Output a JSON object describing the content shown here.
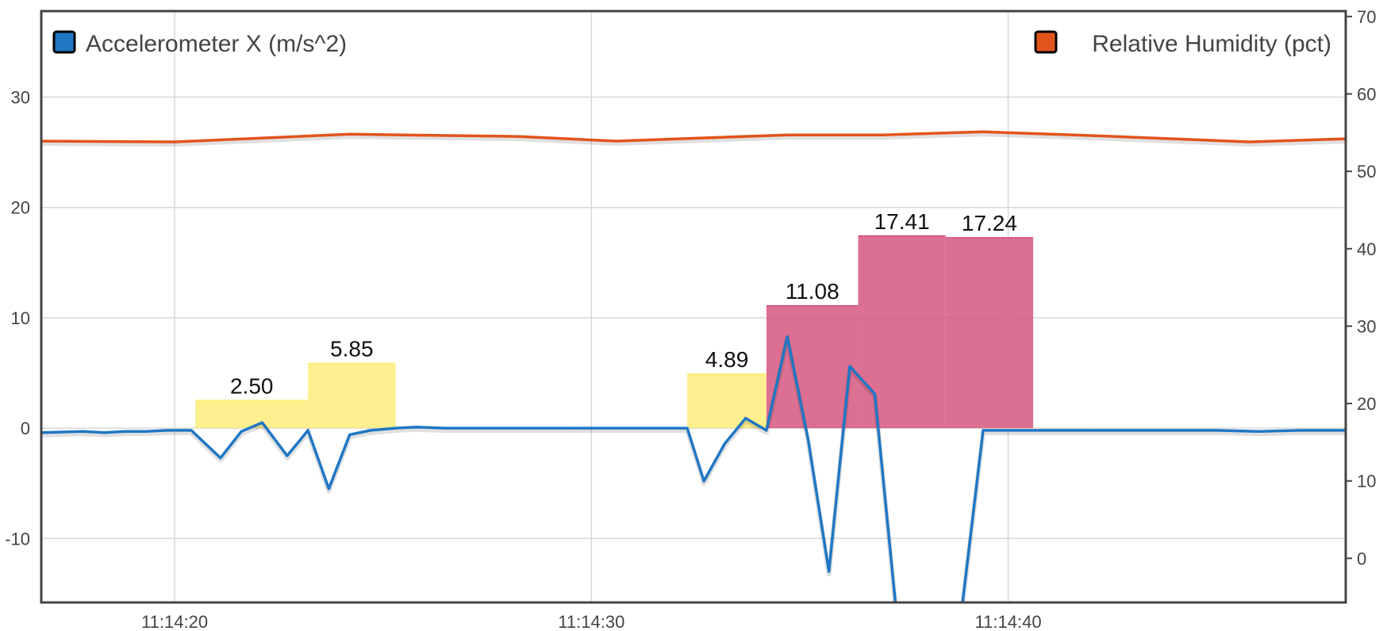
{
  "chart_data": {
    "type": "line",
    "x_ticks": [
      "11:14:20",
      "11:14:30",
      "11:14:40"
    ],
    "x_range": [
      "11:14:16.8",
      "11:14:48.1"
    ],
    "y_left": {
      "ticks": [
        -10,
        0,
        10,
        20,
        30
      ],
      "range": [
        -15.8,
        37.8
      ]
    },
    "y_right": {
      "ticks": [
        0,
        10,
        20,
        30,
        40,
        50,
        60,
        70
      ],
      "range": [
        -5.7,
        70.7
      ]
    },
    "grid": true,
    "legend": [
      {
        "label": "Accelerometer X (m/s^2)",
        "color": "#1f77c4",
        "placement": "top-left"
      },
      {
        "label": "Relative Humidity (pct)",
        "color": "#e2541b",
        "placement": "top-right"
      }
    ],
    "series": [
      {
        "name": "Accelerometer X (m/s^2)",
        "axis": "left",
        "color": "#1f77c4",
        "x": [
          "11:14:16.8",
          "11:14:17.8",
          "11:14:18.3",
          "11:14:18.8",
          "11:14:19.3",
          "11:14:19.8",
          "11:14:20.4",
          "11:14:21.1",
          "11:14:21.6",
          "11:14:22.1",
          "11:14:22.7",
          "11:14:23.2",
          "11:14:23.7",
          "11:14:24.2",
          "11:14:24.7",
          "11:14:25.3",
          "11:14:25.8",
          "11:14:26.5",
          "11:14:27.5",
          "11:14:28.5",
          "11:14:29.5",
          "11:14:30.5",
          "11:14:31.5",
          "11:14:32.3",
          "11:14:32.7",
          "11:14:33.2",
          "11:14:33.7",
          "11:14:34.2",
          "11:14:34.7",
          "11:14:35.2",
          "11:14:35.7",
          "11:14:36.2",
          "11:14:36.8",
          "11:14:37.3",
          "11:14:37.8",
          "11:14:38.4",
          "11:14:38.9",
          "11:14:39.4",
          "11:14:40.3",
          "11:14:41.0",
          "11:14:42.0",
          "11:14:43.0",
          "11:14:44.0",
          "11:14:45.0",
          "11:14:46.0",
          "11:14:47.0",
          "11:14:48.1"
        ],
        "values": [
          -0.4,
          -0.3,
          -0.4,
          -0.3,
          -0.3,
          -0.2,
          -0.2,
          -2.7,
          -0.3,
          0.5,
          -2.5,
          -0.2,
          -5.5,
          -0.6,
          -0.2,
          0.0,
          0.1,
          0.0,
          0.0,
          0.0,
          0.0,
          0.0,
          0.0,
          0.0,
          -4.8,
          -1.4,
          0.9,
          -0.2,
          8.3,
          -1.0,
          -13.0,
          5.6,
          3.1,
          -16.0,
          -16.0,
          -16.0,
          -16.0,
          -0.2,
          -0.2,
          -0.2,
          -0.2,
          -0.2,
          -0.2,
          -0.2,
          -0.3,
          -0.2,
          -0.2
        ]
      },
      {
        "name": "Relative Humidity (pct)",
        "axis": "right",
        "color": "#e2541b",
        "x": [
          "11:14:16.8",
          "11:14:20.0",
          "11:14:24.2",
          "11:14:28.3",
          "11:14:30.6",
          "11:14:34.7",
          "11:14:37.0",
          "11:14:39.4",
          "11:14:41.6",
          "11:14:45.8",
          "11:14:48.1"
        ],
        "values": [
          53.9,
          53.8,
          54.8,
          54.5,
          53.9,
          54.7,
          54.7,
          55.1,
          54.7,
          53.8,
          54.2
        ]
      }
    ],
    "bars": [
      {
        "x_start": "11:14:20.5",
        "x_end": "11:14:23.2",
        "value": 2.5,
        "label": "2.50",
        "color": "#fdeb7a"
      },
      {
        "x_start": "11:14:23.2",
        "x_end": "11:14:25.3",
        "value": 5.85,
        "label": "5.85",
        "color": "#fdeb7a"
      },
      {
        "x_start": "11:14:32.3",
        "x_end": "11:14:34.2",
        "value": 4.89,
        "label": "4.89",
        "color": "#fdeb7a"
      },
      {
        "x_start": "11:14:34.2",
        "x_end": "11:14:36.4",
        "value": 11.08,
        "label": "11.08",
        "color": "#d6577f"
      },
      {
        "x_start": "11:14:36.4",
        "x_end": "11:14:38.5",
        "value": 17.41,
        "label": "17.41",
        "color": "#d6577f"
      },
      {
        "x_start": "11:14:38.5",
        "x_end": "11:14:40.6",
        "value": 17.24,
        "label": "17.24",
        "color": "#d6577f"
      }
    ]
  }
}
